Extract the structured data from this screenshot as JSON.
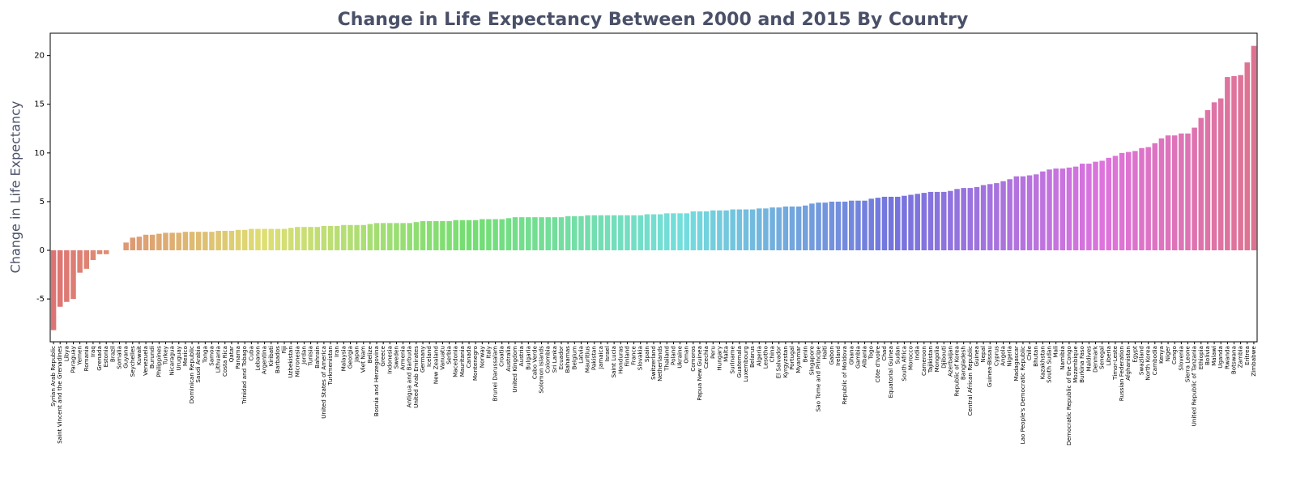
{
  "chart_data": {
    "type": "bar",
    "title": "Change in Life Expectancy Between 2000 and 2015 By Country",
    "y_label": "Change in Life Expectancy",
    "palette": "husl",
    "ylim": [
      -9.4,
      22.3
    ],
    "yticks": [
      -5,
      0,
      5,
      10,
      15,
      20
    ],
    "categories": [
      "Syrian Arab Republic",
      "Saint Vincent and the Grenadines",
      "Libya",
      "Paraguay",
      "Yemen",
      "Romania",
      "Iraq",
      "Grenada",
      "Estonia",
      "Brazil",
      "Somalia",
      "Guyana",
      "Seychelles",
      "Kuwait",
      "Venezuela",
      "Burundi",
      "Philippines",
      "Turkey",
      "Nicaragua",
      "Uruguay",
      "Mexico",
      "Dominican Republic",
      "Saudi Arabia",
      "Tonga",
      "Samoa",
      "Lithuania",
      "Costa Rica",
      "Qatar",
      "Panama",
      "Trinidad and Tobago",
      "Cuba",
      "Lebanon",
      "Argentina",
      "Kiribati",
      "Barbados",
      "Fiji",
      "Uzbekistan",
      "Micronesia",
      "Jordan",
      "Tunisia",
      "Bahrain",
      "United States of America",
      "Turkmenistan",
      "Iran",
      "Malaysia",
      "Georgia",
      "Japan",
      "Viet Nam",
      "Belize",
      "Bosnia and Herzegovina",
      "Greece",
      "Indonesia",
      "Sweden",
      "Armenia",
      "Antigua and Barbuda",
      "United Arab Emirates",
      "Germany",
      "Iceland",
      "New Zealand",
      "Vanuatu",
      "Serbia",
      "Macedonia",
      "Mauritania",
      "Canada",
      "Montenegro",
      "Norway",
      "Italy",
      "Brunei Darussalam",
      "Croatia",
      "Australia",
      "United Kingdom",
      "Austria",
      "Bulgaria",
      "Cabo Verde",
      "Solomon Islands",
      "Colombia",
      "Sri Lanka",
      "Ecuador",
      "Bahamas",
      "Belgium",
      "Latvia",
      "Mauritius",
      "Pakistan",
      "Jamaica",
      "Israel",
      "Saint Lucia",
      "Honduras",
      "Finland",
      "France",
      "Slovakia",
      "Spain",
      "Switzerland",
      "Netherlands",
      "Thailand",
      "Poland",
      "Ukraine",
      "Oman",
      "Comoros",
      "Papua New Guinea",
      "Czechia",
      "Peru",
      "Hungary",
      "Malta",
      "Suriname",
      "Guatemala",
      "Luxembourg",
      "Belarus",
      "Algeria",
      "Lesotho",
      "China",
      "El Salvador",
      "Kyrgyzstan",
      "Portugal",
      "Myanmar",
      "Benin",
      "Singapore",
      "Sao Tome and Principe",
      "Haiti",
      "Gabon",
      "Ireland",
      "Republic of Moldova",
      "Ghana",
      "Gambia",
      "Albania",
      "Togo",
      "Côte d'Ivoire",
      "Chad",
      "Equatorial Guinea",
      "Sudan",
      "South Africa",
      "Morocco",
      "India",
      "Cameroon",
      "Tajikistan",
      "Mongolia",
      "Djibouti",
      "Azerbaijan",
      "Republic of Korea",
      "Bangladesh",
      "Central African Republic",
      "Guinea",
      "Nepal",
      "Guinea-Bissau",
      "Cyprus",
      "Angola",
      "Nigeria",
      "Madagascar",
      "Lao People's Democratic Republic",
      "Chile",
      "Bhutan",
      "Kazakhstan",
      "South Sudan",
      "Mali",
      "Namibia",
      "Democratic Republic of the Congo",
      "Mozambique",
      "Burkina Faso",
      "Maldives",
      "Denmark",
      "Senegal",
      "Liberia",
      "Timor-Leste",
      "Russian Federation",
      "Afghanistan",
      "Egypt",
      "Swaziland",
      "North Korea",
      "Cambodia",
      "Kenya",
      "Niger",
      "Congo",
      "Slovenia",
      "Sierra Leone",
      "United Republic of Tanzania",
      "Ethiopia",
      "Bolivia",
      "Malawi",
      "Uganda",
      "Rwanda",
      "Botswana",
      "Zambia",
      "Eritrea",
      "Zimbabwe"
    ],
    "values": [
      -8.2,
      -5.8,
      -5.3,
      -5.0,
      -2.3,
      -1.9,
      -1.0,
      -0.4,
      -0.4,
      0.0,
      0.0,
      0.8,
      1.3,
      1.4,
      1.6,
      1.6,
      1.7,
      1.8,
      1.8,
      1.8,
      1.9,
      1.9,
      1.9,
      1.9,
      1.9,
      2.0,
      2.0,
      2.0,
      2.1,
      2.1,
      2.2,
      2.2,
      2.2,
      2.2,
      2.2,
      2.2,
      2.3,
      2.4,
      2.4,
      2.4,
      2.4,
      2.5,
      2.5,
      2.5,
      2.6,
      2.6,
      2.6,
      2.6,
      2.7,
      2.8,
      2.8,
      2.8,
      2.8,
      2.8,
      2.8,
      2.9,
      3.0,
      3.0,
      3.0,
      3.0,
      3.0,
      3.1,
      3.1,
      3.1,
      3.1,
      3.2,
      3.2,
      3.2,
      3.2,
      3.3,
      3.4,
      3.4,
      3.4,
      3.4,
      3.4,
      3.4,
      3.4,
      3.4,
      3.5,
      3.5,
      3.5,
      3.6,
      3.6,
      3.6,
      3.6,
      3.6,
      3.6,
      3.6,
      3.6,
      3.6,
      3.7,
      3.7,
      3.7,
      3.8,
      3.8,
      3.8,
      3.8,
      4.0,
      4.0,
      4.0,
      4.1,
      4.1,
      4.1,
      4.2,
      4.2,
      4.2,
      4.2,
      4.3,
      4.3,
      4.4,
      4.4,
      4.5,
      4.5,
      4.5,
      4.6,
      4.8,
      4.9,
      4.9,
      5.0,
      5.0,
      5.0,
      5.1,
      5.1,
      5.1,
      5.3,
      5.4,
      5.5,
      5.5,
      5.5,
      5.6,
      5.7,
      5.8,
      5.9,
      6.0,
      6.0,
      6.0,
      6.1,
      6.3,
      6.4,
      6.4,
      6.5,
      6.7,
      6.8,
      6.9,
      7.1,
      7.3,
      7.6,
      7.6,
      7.7,
      7.8,
      8.1,
      8.3,
      8.4,
      8.4,
      8.5,
      8.6,
      8.9,
      8.9,
      9.1,
      9.2,
      9.5,
      9.7,
      10.0,
      10.1,
      10.2,
      10.5,
      10.6,
      11.0,
      11.5,
      11.8,
      11.8,
      12.0,
      12.0,
      12.6,
      13.6,
      14.4,
      15.2,
      15.6,
      17.8,
      17.9,
      18.0,
      19.3,
      21.0
    ]
  }
}
